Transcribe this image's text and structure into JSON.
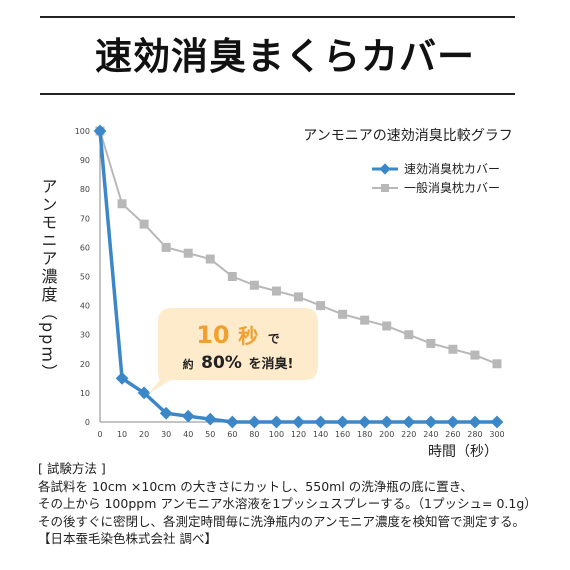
{
  "title": "速効消臭まくらカバー",
  "chart_data": {
    "type": "line",
    "title": "アンモニアの速効消臭比較グラフ",
    "xlabel": "時間（秒）",
    "ylabel": "アンモニア濃度（ppm）",
    "xlim": [
      0,
      300
    ],
    "ylim": [
      0,
      100
    ],
    "x_ticks": [
      "0",
      "10",
      "20",
      "30",
      "40",
      "50",
      "60",
      "80",
      "100",
      "120",
      "140",
      "160",
      "180",
      "200",
      "220",
      "240",
      "260",
      "280",
      "300"
    ],
    "y_ticks": [
      "0",
      "10",
      "20",
      "30",
      "40",
      "50",
      "60",
      "70",
      "80",
      "90",
      "100"
    ],
    "legend_position": "top-right",
    "series": [
      {
        "name": "速効消臭枕カバー",
        "color": "#3b87c8",
        "marker": "diamond",
        "values": [
          100,
          15,
          10,
          3,
          2,
          1,
          0,
          0,
          0,
          0,
          0,
          0,
          0,
          0,
          0,
          0,
          0,
          0,
          0
        ]
      },
      {
        "name": "一般消臭枕カバー",
        "color": "#b8b8b8",
        "marker": "square",
        "values": [
          100,
          75,
          68,
          60,
          58,
          56,
          50,
          47,
          45,
          43,
          40,
          37,
          35,
          33,
          30,
          27,
          25,
          23,
          20
        ]
      }
    ],
    "annotation": {
      "big_number": "10",
      "big_unit": "秒",
      "big_suffix": "で",
      "small_prefix": "約",
      "small_value": "80%",
      "small_suffix": "を消臭!",
      "accent_color": "#f0a030",
      "bubble_color": "#fdebcc"
    }
  },
  "notes": {
    "heading": "[ 試験方法 ]",
    "line1": "各試料を 10cm ×10cm の大きさにカットし、550ml の洗浄瓶の底に置き、",
    "line2": "その上から 100ppm アンモニア水溶液を1プッシュスプレーする。（1プッシュ= 0.1g）",
    "line3": "その後すぐに密閉し、各測定時間毎に洗浄瓶内のアンモニア濃度を検知管で測定する。",
    "credit": "【日本蚕毛染色株式会社 調べ】"
  }
}
